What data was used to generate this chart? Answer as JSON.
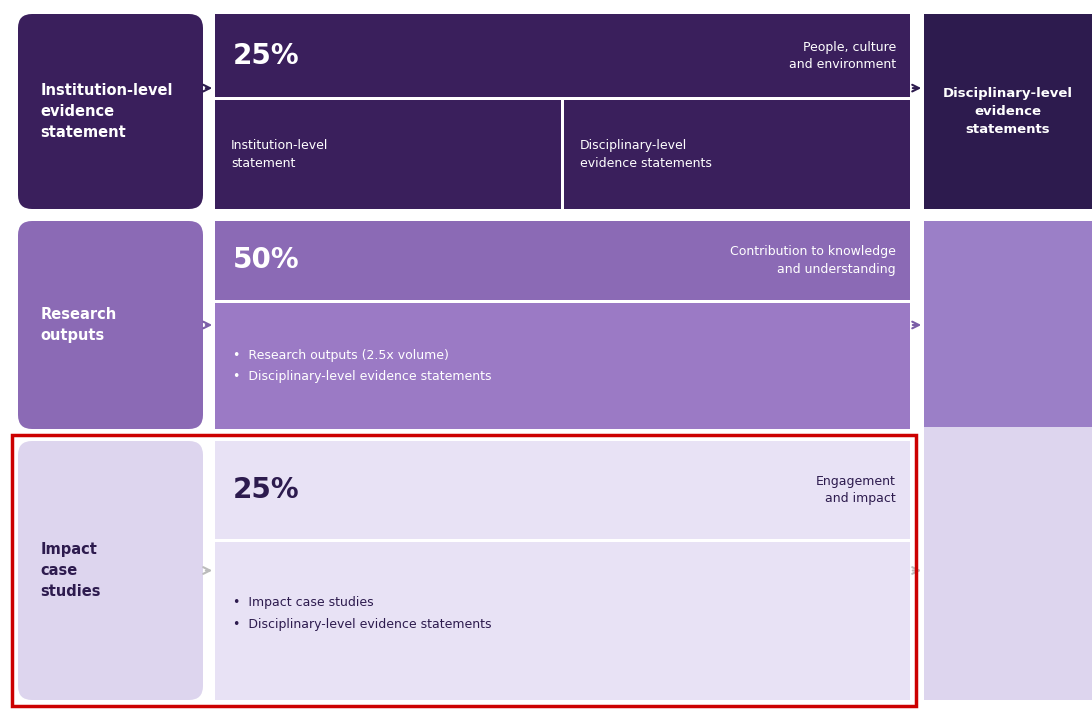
{
  "bg_color": "#ffffff",
  "dark_purple": "#2d1b4e",
  "medium_purple": "#7b5ea7",
  "light_purple": "#c8b8e0",
  "very_light_purple": "#e8e0f0",
  "lightest_purple": "#e8e2f2",
  "row1": {
    "left_box_color": "#3a1f5c",
    "left_label": "Institution-level\nevidence\nstatement",
    "top_box_color": "#3a1f5c",
    "top_percent": "25%",
    "top_label": "People, culture\nand environment",
    "bottom_left_color": "#3a1f5c",
    "bottom_left_label": "Institution-level\nstatement",
    "bottom_right_color": "#3a1f5c",
    "bottom_right_label": "Disciplinary-level\nevidence statements"
  },
  "row2": {
    "left_box_color": "#8b6ab5",
    "left_label": "Research\noutputs",
    "top_box_color": "#8b6ab5",
    "top_percent": "50%",
    "top_label": "Contribution to knowledge\nand understanding",
    "bottom_box_color": "#9b7ac5",
    "bottom_bullets": [
      "Research outputs (2.5x volume)",
      "Disciplinary-level evidence statements"
    ]
  },
  "row3": {
    "left_box_color": "#ddd5ee",
    "left_label": "Impact\ncase\nstudies",
    "top_box_color": "#e8e2f5",
    "top_percent": "25%",
    "top_label": "Engagement\nand impact",
    "bottom_box_color": "#e8e2f5",
    "bottom_bullets": [
      "Impact case studies",
      "Disciplinary-level evidence statements"
    ]
  },
  "right_col": {
    "top_color": "#2d1b4e",
    "mid_color": "#9b7fc7",
    "bot_color": "#ddd5ee",
    "label": "Disciplinary-level\nevidence\nstatements"
  },
  "red_border_color": "#cc0000",
  "arrow_row1_color": "#2d1b4e",
  "arrow_row2_color": "#7b5ea7",
  "arrow_row3_color": "#bbbbbb"
}
